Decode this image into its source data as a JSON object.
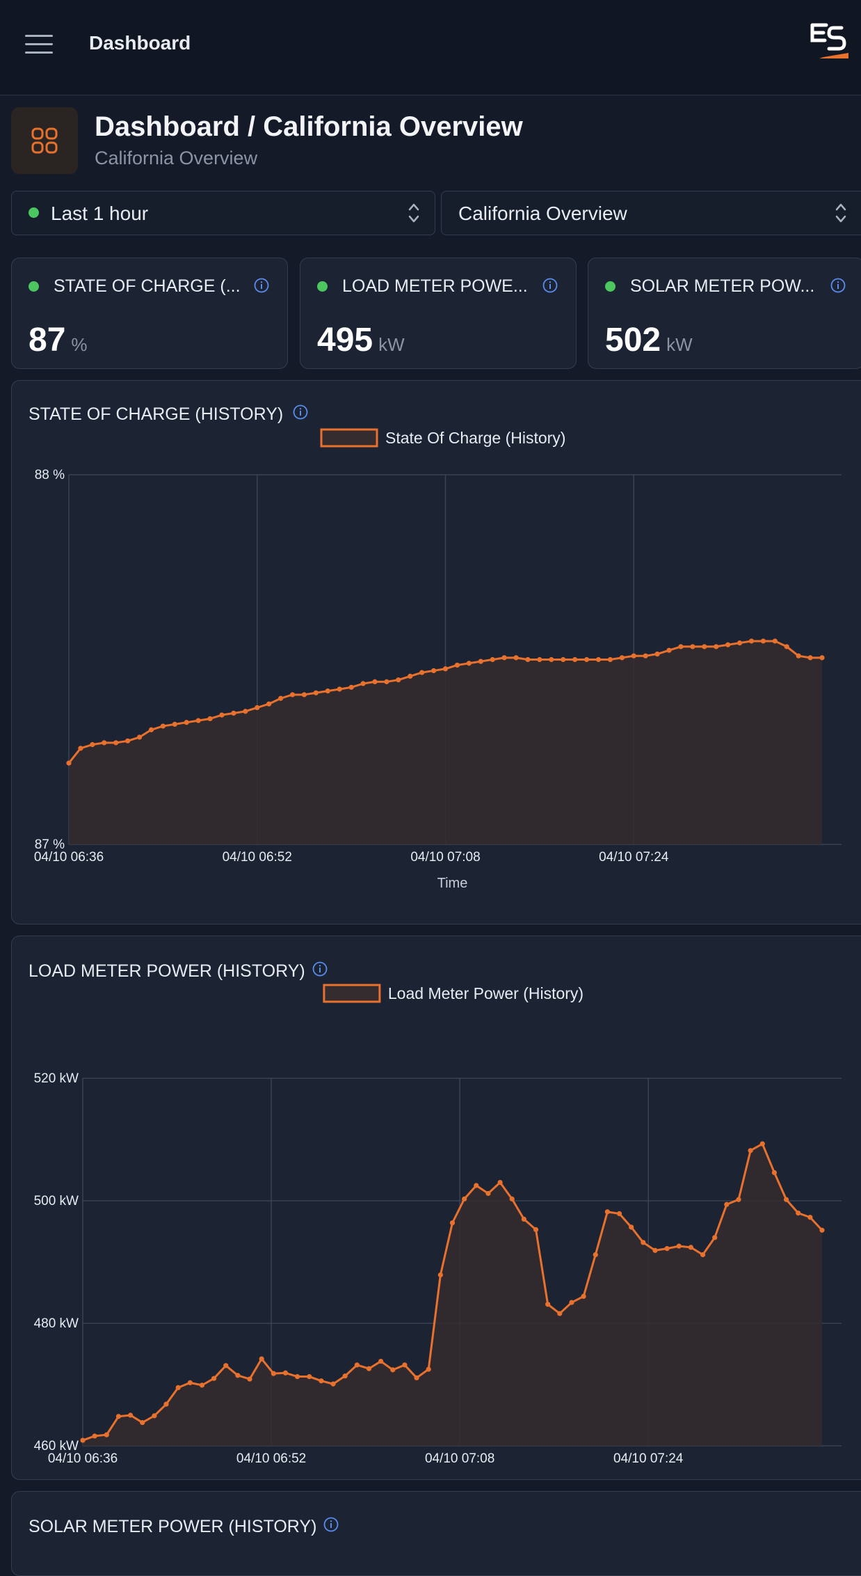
{
  "topbar": {
    "title": "Dashboard",
    "menu_icon": "hamburger-icon",
    "logo_icon": "es-logo"
  },
  "header": {
    "title": "Dashboard / California Overview",
    "subtitle": "California Overview",
    "icon": "dashboard-grid-icon"
  },
  "filters": {
    "time_range": {
      "value": "Last 1 hour",
      "status_color": "#4cc65e"
    },
    "site": {
      "value": "California Overview"
    }
  },
  "stats": [
    {
      "label": "STATE OF CHARGE (...",
      "value": "87",
      "unit": "%"
    },
    {
      "label": "LOAD METER POWE...",
      "value": "495",
      "unit": "kW"
    },
    {
      "label": "SOLAR METER POW...",
      "value": "502",
      "unit": "kW"
    }
  ],
  "colors": {
    "accent": "#e8712e",
    "status_ok": "#4cc65e",
    "info": "#5b8def",
    "background": "#141a27",
    "card": "#1c2434"
  },
  "chart_data": [
    {
      "type": "line",
      "title": "STATE OF CHARGE (HISTORY)",
      "legend": "State Of Charge (History)",
      "xlabel": "Time",
      "ylabel": "",
      "x_ticks": [
        "04/10 06:36",
        "04/10 06:52",
        "04/10 07:08",
        "04/10 07:24"
      ],
      "y_ticks": [
        {
          "value": 87,
          "label": "87 %"
        },
        {
          "value": 88,
          "label": "88 %"
        }
      ],
      "ylim": [
        87,
        88
      ],
      "xlim": [
        0,
        62
      ],
      "area_fill": true,
      "series": [
        {
          "name": "State Of Charge (History)",
          "values": [
            87.22,
            87.26,
            87.27,
            87.275,
            87.275,
            87.28,
            87.29,
            87.31,
            87.32,
            87.325,
            87.33,
            87.335,
            87.34,
            87.35,
            87.355,
            87.36,
            87.37,
            87.38,
            87.395,
            87.405,
            87.405,
            87.41,
            87.415,
            87.42,
            87.425,
            87.435,
            87.44,
            87.44,
            87.445,
            87.455,
            87.465,
            87.47,
            87.475,
            87.485,
            87.49,
            87.495,
            87.5,
            87.505,
            87.505,
            87.5,
            87.5,
            87.5,
            87.5,
            87.5,
            87.5,
            87.5,
            87.5,
            87.505,
            87.51,
            87.51,
            87.515,
            87.525,
            87.535,
            87.535,
            87.535,
            87.535,
            87.54,
            87.545,
            87.55,
            87.55,
            87.55,
            87.535,
            87.51,
            87.505,
            87.505
          ]
        }
      ]
    },
    {
      "type": "line",
      "title": "LOAD METER POWER (HISTORY)",
      "legend": "Load Meter Power (History)",
      "xlabel": "Time",
      "ylabel": "",
      "x_ticks": [
        "04/10 06:36",
        "04/10 06:52",
        "04/10 07:08",
        "04/10 07:24"
      ],
      "y_ticks": [
        {
          "value": 460,
          "label": "460 kW"
        },
        {
          "value": 480,
          "label": "480 kW"
        },
        {
          "value": 500,
          "label": "500 kW"
        },
        {
          "value": 520,
          "label": "520 kW"
        }
      ],
      "ylim": [
        460,
        520
      ],
      "xlim": [
        0,
        60
      ],
      "area_fill": true,
      "series": [
        {
          "name": "Load Meter Power (History)",
          "values": [
            460.9,
            461.6,
            461.8,
            464.8,
            465,
            463.8,
            464.9,
            466.8,
            469.5,
            470.3,
            469.9,
            471,
            473.1,
            471.5,
            470.9,
            474.2,
            471.8,
            471.9,
            471.3,
            471.3,
            470.6,
            470.1,
            471.4,
            473.2,
            472.6,
            473.8,
            472.4,
            473.2,
            471.1,
            472.5,
            487.9,
            496.4,
            500.3,
            502.5,
            501.2,
            503,
            500.3,
            497,
            495.3,
            483.1,
            481.6,
            483.4,
            484.4,
            491.2,
            498.2,
            497.9,
            495.7,
            493.2,
            491.9,
            492.2,
            492.6,
            492.4,
            491.2,
            494,
            499.4,
            500.2,
            508.2,
            509.3,
            504.6,
            500.2,
            498,
            497.3,
            495.2
          ]
        }
      ]
    }
  ],
  "solar_card": {
    "title": "SOLAR METER POWER (HISTORY)"
  }
}
